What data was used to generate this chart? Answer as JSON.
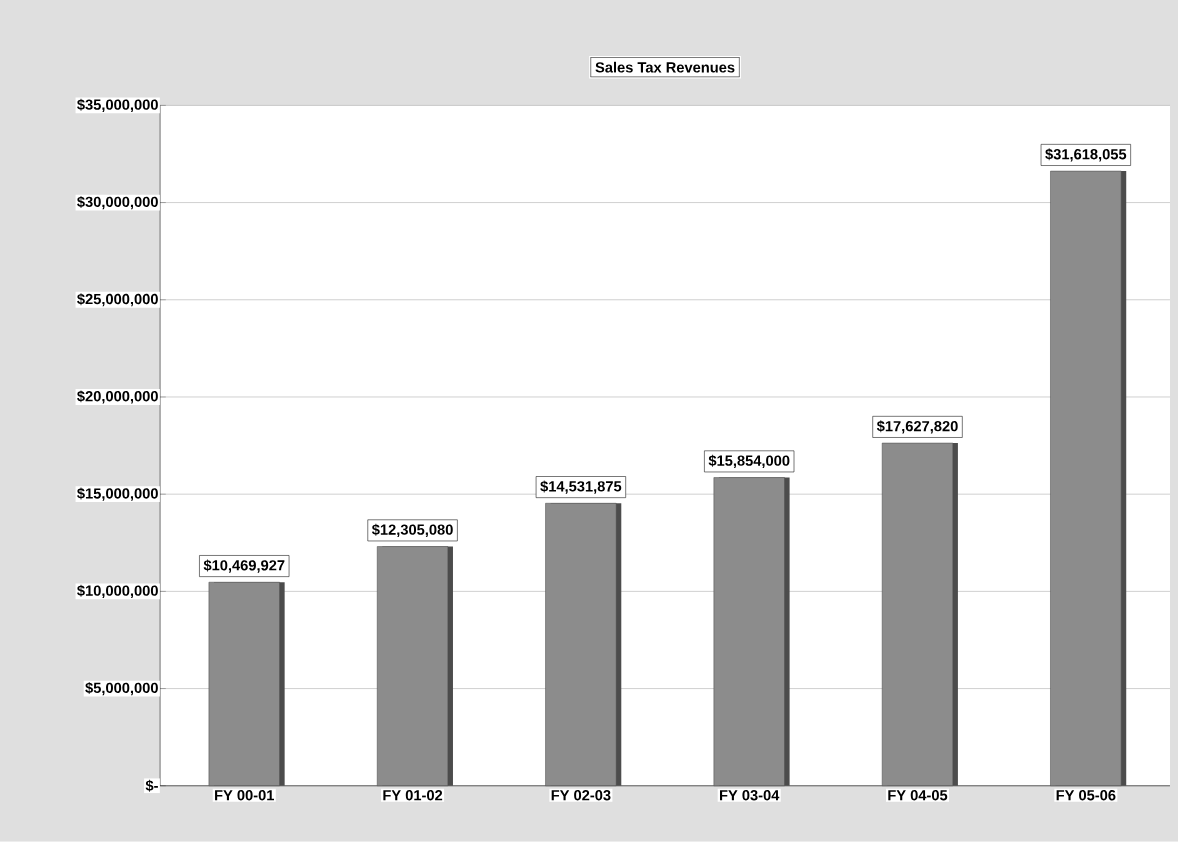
{
  "chart_data": {
    "type": "bar",
    "title": "Sales Tax Revenues",
    "categories": [
      "FY 00-01",
      "FY 01-02",
      "FY 02-03",
      "FY 03-04",
      "FY 04-05",
      "FY 05-06"
    ],
    "values": [
      10469927,
      12305080,
      14531875,
      15854000,
      17627820,
      31618055
    ],
    "value_labels": [
      "$10,469,927",
      "$12,305,080",
      "$14,531,875",
      "$15,854,000",
      "$17,627,820",
      "$31,618,055"
    ],
    "color": "#8c8c8c",
    "ylim": [
      0,
      35000000
    ],
    "yticks": [
      {
        "value": 0,
        "label": "$-"
      },
      {
        "value": 5000000,
        "label": "$5,000,000"
      },
      {
        "value": 10000000,
        "label": "$10,000,000"
      },
      {
        "value": 15000000,
        "label": "$15,000,000"
      },
      {
        "value": 20000000,
        "label": "$20,000,000"
      },
      {
        "value": 25000000,
        "label": "$25,000,000"
      },
      {
        "value": 30000000,
        "label": "$30,000,000"
      },
      {
        "value": 35000000,
        "label": "$35,000,000"
      }
    ],
    "grid": "y"
  }
}
